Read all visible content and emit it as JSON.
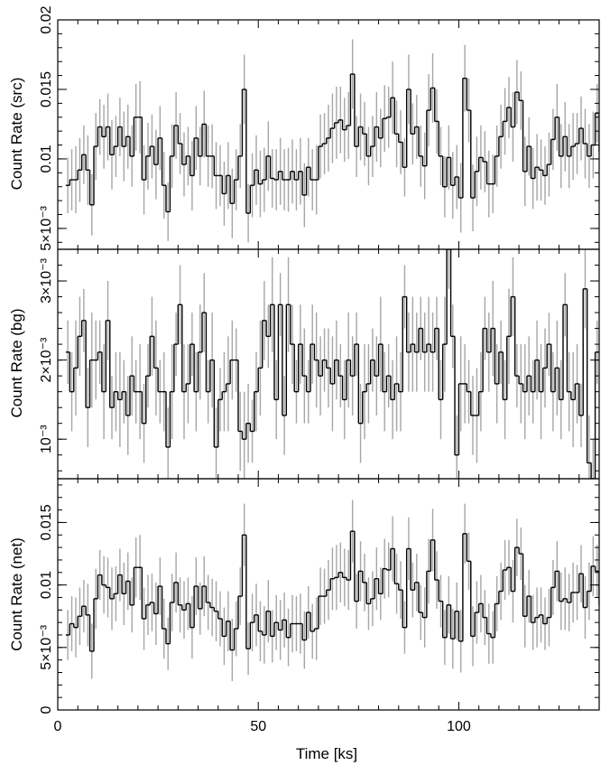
{
  "chart_data": [
    {
      "type": "line",
      "style": "step histogram with error bars",
      "ylabel": "Count Rate (src)",
      "xlim": [
        0,
        135
      ],
      "ylim": [
        0.0035,
        0.02
      ],
      "yticks": [
        0.005,
        0.01,
        0.015,
        0.02
      ],
      "ytick_labels": [
        "5×10⁻³",
        "0.01",
        "0.015",
        "0.02"
      ],
      "bin_width_ks": 1.0,
      "x_start_ks": 2,
      "values": [
        0.0081,
        0.0085,
        0.0085,
        0.0092,
        0.0103,
        0.0092,
        0.0067,
        0.0109,
        0.0123,
        0.0116,
        0.0123,
        0.0103,
        0.0109,
        0.0123,
        0.0109,
        0.0116,
        0.0102,
        0.013,
        0.013,
        0.0085,
        0.0102,
        0.0109,
        0.0096,
        0.0115,
        0.0081,
        0.0062,
        0.0102,
        0.0124,
        0.0111,
        0.0096,
        0.0102,
        0.0088,
        0.0115,
        0.0102,
        0.0125,
        0.0102,
        0.0102,
        0.0088,
        0.0088,
        0.0075,
        0.0088,
        0.0068,
        0.0085,
        0.0102,
        0.015,
        0.0061,
        0.0081,
        0.0092,
        0.0082,
        0.0085,
        0.0102,
        0.0086,
        0.0085,
        0.0091,
        0.0085,
        0.0085,
        0.0091,
        0.0085,
        0.0091,
        0.0074,
        0.0094,
        0.0085,
        0.0085,
        0.0109,
        0.0111,
        0.0115,
        0.0122,
        0.0126,
        0.0128,
        0.0121,
        0.0124,
        0.0161,
        0.0109,
        0.0123,
        0.0118,
        0.0102,
        0.0109,
        0.0123,
        0.0115,
        0.0129,
        0.013,
        0.0144,
        0.0118,
        0.0112,
        0.0094,
        0.015,
        0.0118,
        0.0123,
        0.0102,
        0.0095,
        0.0135,
        0.0151,
        0.0127,
        0.0102,
        0.008,
        0.0101,
        0.0081,
        0.0087,
        0.0072,
        0.0158,
        0.0135,
        0.0072,
        0.0091,
        0.0101,
        0.0098,
        0.0082,
        0.0082,
        0.0102,
        0.0116,
        0.0127,
        0.0137,
        0.0123,
        0.0148,
        0.0142,
        0.0091,
        0.0109,
        0.0086,
        0.0094,
        0.0092,
        0.0088,
        0.0096,
        0.0114,
        0.013,
        0.0102,
        0.0116,
        0.0102,
        0.0109,
        0.0111,
        0.0122,
        0.0111,
        0.0102,
        0.011,
        0.0133,
        0.0105,
        0.0125,
        0.0104
      ],
      "errors": [
        0.002,
        0.0022,
        0.0024,
        0.0023,
        0.0021,
        0.0025,
        0.0022,
        0.0024,
        0.002,
        0.0023,
        0.0024,
        0.0025,
        0.0022,
        0.0021,
        0.0025,
        0.0023,
        0.0022,
        0.0024,
        0.0026,
        0.0025,
        0.0024,
        0.0023,
        0.0025,
        0.0023,
        0.0024,
        0.0021,
        0.0023,
        0.0024,
        0.0022,
        0.0023,
        0.0021,
        0.0025,
        0.0023,
        0.0021,
        0.0024,
        0.0022,
        0.0023,
        0.0024,
        0.0022,
        0.0023,
        0.0024,
        0.0025,
        0.0022,
        0.0023,
        0.0025,
        0.0021,
        0.0023,
        0.0025,
        0.0024,
        0.0023,
        0.0025,
        0.0021,
        0.0022,
        0.0024,
        0.0022,
        0.0023,
        0.0023,
        0.0022,
        0.0024,
        0.0023,
        0.0021,
        0.0022,
        0.0025,
        0.0023,
        0.0022,
        0.0024,
        0.0025,
        0.0026,
        0.0024,
        0.0023,
        0.0024,
        0.0025,
        0.0022,
        0.0024,
        0.0023,
        0.0021,
        0.0022,
        0.0025,
        0.0021,
        0.0024,
        0.0022,
        0.0026,
        0.0024,
        0.0023,
        0.0021,
        0.0025,
        0.0022,
        0.0023,
        0.0022,
        0.0024,
        0.0026,
        0.0025,
        0.0023,
        0.0021,
        0.0022,
        0.0023,
        0.0024,
        0.0023,
        0.0025,
        0.0024,
        0.0023,
        0.0024,
        0.0025,
        0.0023,
        0.0022,
        0.0024,
        0.0021,
        0.0022,
        0.0023,
        0.0024,
        0.0022,
        0.0025,
        0.0023,
        0.0021,
        0.0025,
        0.0021,
        0.0022,
        0.0024,
        0.0022,
        0.0021,
        0.0023,
        0.0022,
        0.0024,
        0.0023,
        0.0025,
        0.0023,
        0.0024,
        0.0022,
        0.0023,
        0.0025,
        0.0023,
        0.0024,
        0.0021,
        0.0023,
        0.0022,
        0.0021
      ]
    },
    {
      "type": "line",
      "style": "step histogram with error bars",
      "ylabel": "Count Rate (bg)",
      "xlim": [
        0,
        135
      ],
      "ylim": [
        0.0005,
        0.0034
      ],
      "yticks": [
        0.001,
        0.002,
        0.003
      ],
      "ytick_labels": [
        "10⁻³",
        "2×10⁻³",
        "3×10⁻³"
      ],
      "bin_width_ks": 1.0,
      "x_start_ks": 2,
      "values": [
        0.0021,
        0.0016,
        0.0019,
        0.0023,
        0.0025,
        0.0014,
        0.002,
        0.002,
        0.0021,
        0.0016,
        0.0025,
        0.0014,
        0.0016,
        0.0015,
        0.0016,
        0.0013,
        0.0018,
        0.0016,
        0.0016,
        0.0012,
        0.0018,
        0.0023,
        0.0019,
        0.0016,
        0.0016,
        0.0009,
        0.0016,
        0.0022,
        0.0027,
        0.0016,
        0.0017,
        0.0022,
        0.0016,
        0.0021,
        0.0026,
        0.0016,
        0.002,
        0.0009,
        0.0015,
        0.0016,
        0.0017,
        0.002,
        0.002,
        0.0011,
        0.001,
        0.0012,
        0.0011,
        0.0016,
        0.0019,
        0.0025,
        0.0023,
        0.0027,
        0.0015,
        0.0027,
        0.0013,
        0.0027,
        0.0022,
        0.0016,
        0.0022,
        0.0018,
        0.0016,
        0.0022,
        0.002,
        0.0018,
        0.002,
        0.0019,
        0.0017,
        0.002,
        0.0018,
        0.0015,
        0.002,
        0.0018,
        0.0022,
        0.0012,
        0.0016,
        0.0017,
        0.002,
        0.0018,
        0.0022,
        0.0016,
        0.0018,
        0.0015,
        0.0017,
        0.0016,
        0.0028,
        0.0021,
        0.0022,
        0.0021,
        0.0024,
        0.0021,
        0.0022,
        0.0021,
        0.0024,
        0.0015,
        0.0022,
        0.0034,
        0.0023,
        0.0008,
        0.0017,
        0.0017,
        0.0016,
        0.0013,
        0.0013,
        0.0016,
        0.0024,
        0.0021,
        0.0024,
        0.0017,
        0.0021,
        0.0015,
        0.0023,
        0.0028,
        0.0018,
        0.0017,
        0.0016,
        0.0018,
        0.0016,
        0.002,
        0.0016,
        0.0019,
        0.0022,
        0.0016,
        0.0019,
        0.0015,
        0.0027,
        0.0016,
        0.0015,
        0.0017,
        0.0013,
        0.0029,
        0.0007,
        0.0005,
        0.0021,
        0.0021,
        0.0022,
        0.0024
      ],
      "errors": [
        0.0004,
        0.0005,
        0.0006,
        0.0005,
        0.0004,
        0.0005,
        0.0006,
        0.0005,
        0.0004,
        0.0006,
        0.0005,
        0.0004,
        0.0005,
        0.0006,
        0.0004,
        0.0005,
        0.0005,
        0.0004,
        0.0006,
        0.0005,
        0.0004,
        0.0005,
        0.0006,
        0.0004,
        0.0005,
        0.0005,
        0.0006,
        0.0004,
        0.0005,
        0.0006,
        0.0005,
        0.0004,
        0.0005,
        0.0006,
        0.0005,
        0.0004,
        0.0006,
        0.0005,
        0.0004,
        0.0005,
        0.0006,
        0.0005,
        0.0004,
        0.0005,
        0.0006,
        0.0005,
        0.0004,
        0.0005,
        0.0006,
        0.0005,
        0.0004,
        0.0006,
        0.0005,
        0.0004,
        0.0005,
        0.0006,
        0.0005,
        0.0004,
        0.0005,
        0.0006,
        0.0004,
        0.0005,
        0.0006,
        0.0005,
        0.0004,
        0.0005,
        0.0006,
        0.0005,
        0.0004,
        0.0005,
        0.0006,
        0.0005,
        0.0004,
        0.0005,
        0.0006,
        0.0005,
        0.0004,
        0.0005,
        0.0006,
        0.0005,
        0.0004,
        0.0005,
        0.0006,
        0.0005,
        0.0004,
        0.0005,
        0.0006,
        0.0005,
        0.0004,
        0.0005,
        0.0006,
        0.0005,
        0.0004,
        0.0005,
        0.0006,
        0.0005,
        0.0004,
        0.0005,
        0.0006,
        0.0005,
        0.0004,
        0.0005,
        0.0006,
        0.0005,
        0.0004,
        0.0005,
        0.0006,
        0.0005,
        0.0004,
        0.0005,
        0.0006,
        0.0005,
        0.0004,
        0.0005,
        0.0006,
        0.0005,
        0.0004,
        0.0005,
        0.0006,
        0.0005,
        0.0004,
        0.0005,
        0.0006,
        0.0005,
        0.0004,
        0.0005,
        0.0006,
        0.0005,
        0.0004,
        0.0005,
        0.0006,
        0.0005,
        0.0004,
        0.0005,
        0.0006,
        0.0005
      ]
    },
    {
      "type": "line",
      "style": "step histogram with error bars",
      "ylabel": "Count Rate (net)",
      "xlabel": "Time [ks]",
      "xlim": [
        0,
        135
      ],
      "xticks": [
        0,
        50,
        100
      ],
      "xtick_labels": [
        "0",
        "50",
        "100"
      ],
      "ylim": [
        0,
        0.0185
      ],
      "yticks": [
        0,
        0.005,
        0.01,
        0.015
      ],
      "ytick_labels": [
        "0",
        "5×10⁻³",
        "0.01",
        "0.015"
      ],
      "bin_width_ks": 1.0,
      "x_start_ks": 2,
      "values": [
        0.006,
        0.0069,
        0.0066,
        0.0075,
        0.0083,
        0.0076,
        0.0047,
        0.0089,
        0.0108,
        0.01,
        0.0098,
        0.0089,
        0.0093,
        0.0108,
        0.0093,
        0.0103,
        0.0084,
        0.0114,
        0.0114,
        0.0073,
        0.0084,
        0.0086,
        0.0077,
        0.0099,
        0.0065,
        0.0053,
        0.0086,
        0.0102,
        0.0084,
        0.008,
        0.0085,
        0.0066,
        0.0099,
        0.0081,
        0.0099,
        0.0086,
        0.0082,
        0.0079,
        0.0073,
        0.0059,
        0.0071,
        0.0048,
        0.0065,
        0.0091,
        0.014,
        0.0049,
        0.007,
        0.0076,
        0.0063,
        0.006,
        0.0079,
        0.0059,
        0.007,
        0.0064,
        0.0072,
        0.0058,
        0.0069,
        0.0069,
        0.0069,
        0.0056,
        0.0078,
        0.0063,
        0.0065,
        0.0091,
        0.0091,
        0.0096,
        0.0105,
        0.0106,
        0.011,
        0.0106,
        0.0104,
        0.0143,
        0.0087,
        0.0111,
        0.0102,
        0.0085,
        0.0089,
        0.0105,
        0.0093,
        0.0113,
        0.0112,
        0.0129,
        0.0101,
        0.0096,
        0.0066,
        0.0129,
        0.0096,
        0.0102,
        0.0078,
        0.0074,
        0.0111,
        0.0136,
        0.0104,
        0.0087,
        0.0058,
        0.0084,
        0.0057,
        0.0079,
        0.0055,
        0.0141,
        0.0119,
        0.0059,
        0.0078,
        0.0085,
        0.0074,
        0.0061,
        0.0058,
        0.0085,
        0.0095,
        0.0112,
        0.0114,
        0.0095,
        0.013,
        0.0125,
        0.0075,
        0.0091,
        0.007,
        0.0074,
        0.0076,
        0.0069,
        0.0074,
        0.0098,
        0.0111,
        0.0087,
        0.0089,
        0.0086,
        0.0094,
        0.0094,
        0.0109,
        0.0082,
        0.0095,
        0.0115,
        0.0111,
        0.0084,
        0.0103,
        0.008
      ],
      "errors": [
        0.002,
        0.0022,
        0.0024,
        0.0023,
        0.0021,
        0.0025,
        0.0022,
        0.0024,
        0.002,
        0.0023,
        0.0024,
        0.0025,
        0.0022,
        0.0021,
        0.0025,
        0.0023,
        0.0022,
        0.0024,
        0.0026,
        0.0025,
        0.0024,
        0.0023,
        0.0025,
        0.0023,
        0.0024,
        0.0021,
        0.0023,
        0.0024,
        0.0022,
        0.0023,
        0.0021,
        0.0025,
        0.0023,
        0.0021,
        0.0024,
        0.0022,
        0.0023,
        0.0024,
        0.0022,
        0.0023,
        0.0024,
        0.0025,
        0.0022,
        0.0023,
        0.0025,
        0.0021,
        0.0023,
        0.0025,
        0.0024,
        0.0023,
        0.0025,
        0.0021,
        0.0022,
        0.0024,
        0.0022,
        0.0023,
        0.0023,
        0.0022,
        0.0024,
        0.0023,
        0.0021,
        0.0022,
        0.0025,
        0.0023,
        0.0022,
        0.0024,
        0.0025,
        0.0026,
        0.0024,
        0.0023,
        0.0024,
        0.0025,
        0.0022,
        0.0024,
        0.0023,
        0.0021,
        0.0022,
        0.0025,
        0.0021,
        0.0024,
        0.0022,
        0.0026,
        0.0024,
        0.0023,
        0.0021,
        0.0025,
        0.0022,
        0.0023,
        0.0022,
        0.0024,
        0.0026,
        0.0025,
        0.0023,
        0.0021,
        0.0022,
        0.0023,
        0.0024,
        0.0023,
        0.0025,
        0.0024,
        0.0023,
        0.0024,
        0.0025,
        0.0023,
        0.0022,
        0.0024,
        0.0021,
        0.0022,
        0.0023,
        0.0024,
        0.0022,
        0.0025,
        0.0023,
        0.0021,
        0.0025,
        0.0021,
        0.0022,
        0.0024,
        0.0022,
        0.0021,
        0.0023,
        0.0022,
        0.0024,
        0.0023,
        0.0025,
        0.0023,
        0.0024,
        0.0022,
        0.0023,
        0.0025,
        0.0023,
        0.0024,
        0.0021,
        0.0023,
        0.0022,
        0.0021
      ]
    }
  ]
}
